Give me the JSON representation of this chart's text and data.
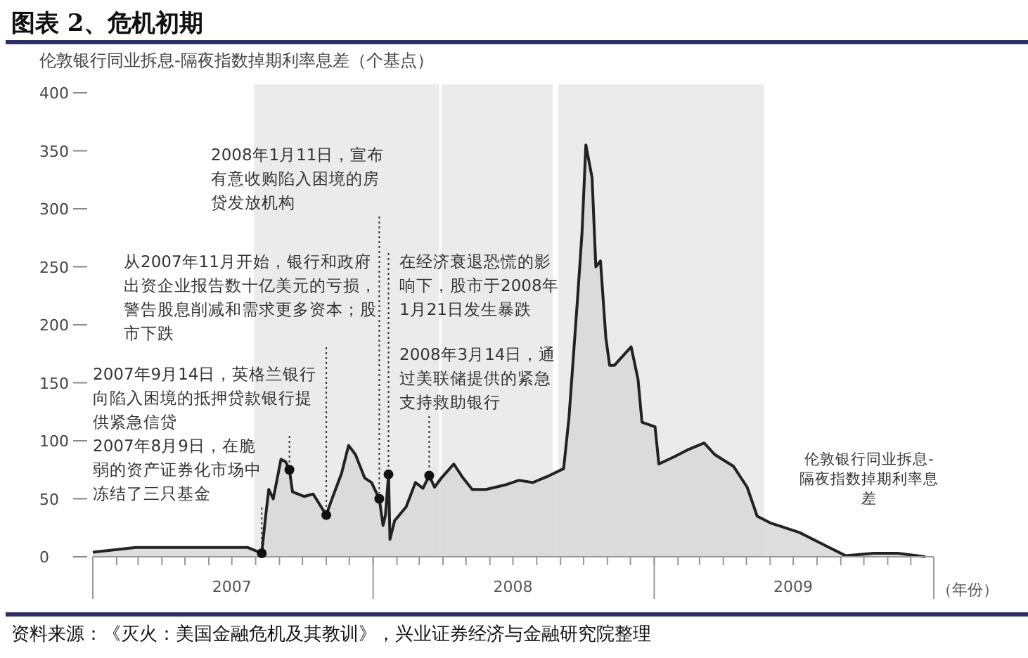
{
  "chart_data": {
    "type": "area",
    "title": "图表 2、危机初期",
    "subtitle": "伦敦银行同业拆息-隔夜指数掉期利率息差（个基点）",
    "xlabel": "（年份）",
    "x": [
      "2007-01-01",
      "2007-02-26",
      "2007-07-22",
      "2007-08-09",
      "2007-08-14",
      "2007-08-18",
      "2007-08-24",
      "2007-09-03",
      "2007-09-09",
      "2007-09-14",
      "2007-09-18",
      "2007-10-03",
      "2007-10-15",
      "2007-11-01",
      "2007-11-08",
      "2007-11-21",
      "2007-11-30",
      "2007-12-09",
      "2007-12-21",
      "2007-12-30",
      "2008-01-09",
      "2008-01-14",
      "2008-01-17",
      "2008-01-21",
      "2008-01-23",
      "2008-01-29",
      "2008-02-13",
      "2008-02-25",
      "2008-03-06",
      "2008-03-14",
      "2008-03-21",
      "2008-03-30",
      "2008-04-15",
      "2008-04-27",
      "2008-05-09",
      "2008-05-27",
      "2008-06-21",
      "2008-07-09",
      "2008-07-27",
      "2008-08-14",
      "2008-09-05",
      "2008-09-12",
      "2008-09-23",
      "2008-09-29",
      "2008-10-04",
      "2008-10-12",
      "2008-10-17",
      "2008-10-23",
      "2008-10-30",
      "2008-11-04",
      "2008-11-10",
      "2008-12-02",
      "2008-12-11",
      "2008-12-16",
      "2009-01-02",
      "2009-01-07",
      "2009-01-26",
      "2009-02-13",
      "2009-03-07",
      "2009-03-21",
      "2009-04-14",
      "2009-05-02",
      "2009-05-15",
      "2009-06-02",
      "2009-07-09",
      "2009-08-14",
      "2009-09-07",
      "2009-10-14",
      "2009-11-14",
      "2009-12-20"
    ],
    "series": [
      {
        "name": "伦敦银行同业拆息-隔夜指数掉期利率息差",
        "color": "#d9d9d9",
        "values": [
          4,
          8,
          8,
          3,
          35,
          58,
          50,
          84,
          82,
          75,
          56,
          52,
          54,
          36,
          49,
          72,
          96,
          88,
          68,
          64,
          50,
          27,
          36,
          71,
          15,
          31,
          43,
          64,
          59,
          70,
          60,
          68,
          80,
          68,
          58,
          58,
          62,
          66,
          64,
          69,
          76,
          120,
          221,
          280,
          355,
          327,
          250,
          255,
          189,
          165,
          165,
          181,
          153,
          116,
          112,
          80,
          86,
          92,
          98,
          88,
          78,
          60,
          35,
          29,
          21,
          9,
          1,
          3,
          3,
          0
        ]
      }
    ],
    "xlim": [
      "2007-01-01",
      "2009-12-31"
    ],
    "xticks": [
      {
        "value": "2007-01-01",
        "label": null
      },
      {
        "value": "2007-07-01",
        "label": "2007"
      },
      {
        "value": "2008-01-01",
        "label": null
      },
      {
        "value": "2008-07-01",
        "label": "2008"
      },
      {
        "value": "2009-01-01",
        "label": null
      },
      {
        "value": "2009-07-01",
        "label": "2009"
      }
    ],
    "ylim": [
      0,
      400
    ],
    "yticks": [
      0,
      50,
      100,
      150,
      200,
      250,
      300,
      350,
      400
    ],
    "bands": [
      {
        "axis": "x",
        "from": "2007-07-30",
        "to": "2008-03-27",
        "color": "#ebebeb"
      },
      {
        "axis": "x",
        "from": "2008-03-30",
        "to": "2008-08-22",
        "color": "#ebebeb"
      },
      {
        "axis": "x",
        "from": "2008-08-29",
        "to": "2009-05-24",
        "color": "#ebebeb"
      }
    ],
    "annotations": [
      {
        "text": "2008年1月11日，宣布有意收购陷入困境的房贷发放机构",
        "x": "2008-01-09",
        "y": 50
      },
      {
        "text": "从2007年11月开始，银行和政府出资企业报告数十亿美元的亏损，警告股息削减和需求更多资本；股市下跌",
        "x": "2007-11-01",
        "y": 36
      },
      {
        "text": "2007年9月14日，英格兰银行向陷入困境的抵押贷款银行提供紧急信贷",
        "x": "2007-09-14",
        "y": 75
      },
      {
        "text": "2007年8月9日，在脆弱的资产证券化市场中冻结了三只基金",
        "x": "2007-08-09",
        "y": 3
      },
      {
        "text": "在经济衰退恐慌的影响下，股市于2008年1月21日发生暴跌",
        "x": "2008-01-21",
        "y": 71
      },
      {
        "text": "2008年3月14日，通过美联储提供的紧急支持救助银行",
        "x": "2008-03-14",
        "y": 70
      },
      "资料来源：《灭火：美国金融危机及其教训》，兴业证券经济与金融研究院整理"
    ]
  }
}
